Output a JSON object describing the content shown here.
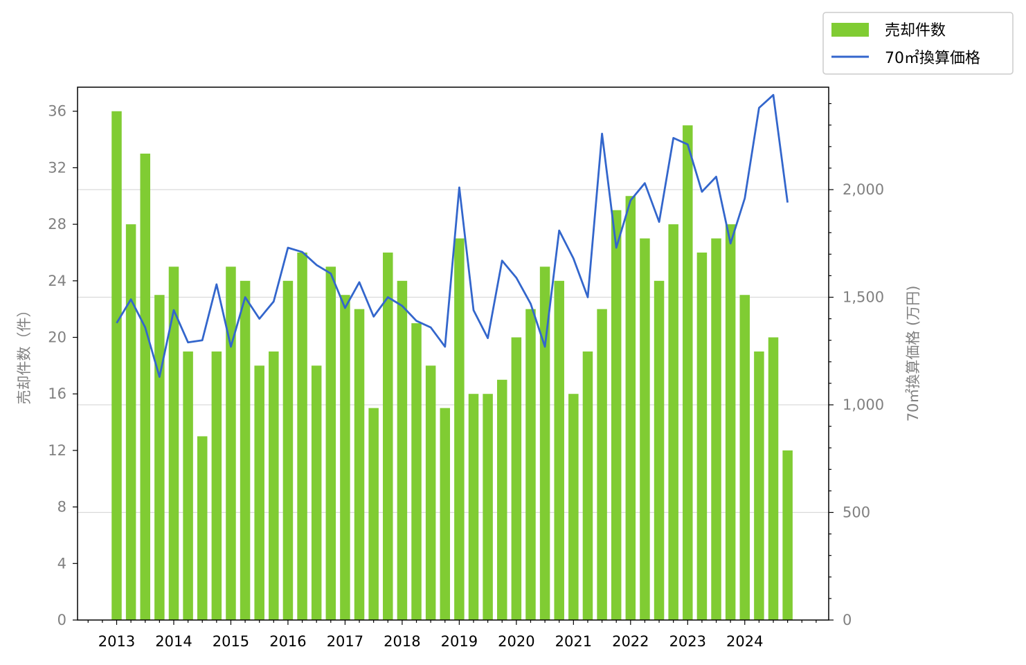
{
  "chart_data": {
    "type": "bar+line",
    "x_quarters": [
      "2013-Q1",
      "2013-Q2",
      "2013-Q3",
      "2013-Q4",
      "2014-Q1",
      "2014-Q2",
      "2014-Q3",
      "2014-Q4",
      "2015-Q1",
      "2015-Q2",
      "2015-Q3",
      "2015-Q4",
      "2016-Q1",
      "2016-Q2",
      "2016-Q3",
      "2016-Q4",
      "2017-Q1",
      "2017-Q2",
      "2017-Q3",
      "2017-Q4",
      "2018-Q1",
      "2018-Q2",
      "2018-Q3",
      "2018-Q4",
      "2019-Q1",
      "2019-Q2",
      "2019-Q3",
      "2019-Q4",
      "2020-Q1",
      "2020-Q2",
      "2020-Q3",
      "2020-Q4",
      "2021-Q1",
      "2021-Q2",
      "2021-Q3",
      "2021-Q4",
      "2022-Q1",
      "2022-Q2",
      "2022-Q3",
      "2022-Q4",
      "2023-Q1",
      "2023-Q2",
      "2023-Q3",
      "2023-Q4",
      "2024-Q1",
      "2024-Q2",
      "2024-Q3",
      "2024-Q4"
    ],
    "xticks": [
      "2013",
      "2014",
      "2015",
      "2016",
      "2017",
      "2018",
      "2019",
      "2020",
      "2021",
      "2022",
      "2023",
      "2024"
    ],
    "series": [
      {
        "name": "売却件数",
        "type": "bar",
        "axis": "left",
        "color": "#80cc33",
        "values": [
          36,
          28,
          33,
          23,
          25,
          19,
          13,
          19,
          25,
          24,
          18,
          19,
          24,
          26,
          18,
          25,
          23,
          22,
          15,
          26,
          24,
          21,
          18,
          15,
          27,
          16,
          16,
          17,
          20,
          22,
          25,
          24,
          16,
          19,
          22,
          29,
          30,
          27,
          24,
          28,
          35,
          26,
          27,
          28,
          23,
          19,
          20,
          12
        ]
      },
      {
        "name": "70㎡換算価格",
        "type": "line",
        "axis": "right",
        "color": "#3366cc",
        "values": [
          1380,
          1490,
          1360,
          1130,
          1440,
          1290,
          1300,
          1560,
          1270,
          1500,
          1400,
          1480,
          1730,
          1710,
          1650,
          1610,
          1450,
          1570,
          1410,
          1500,
          1460,
          1390,
          1360,
          1270,
          2010,
          1440,
          1310,
          1670,
          1590,
          1470,
          1270,
          1810,
          1680,
          1500,
          2260,
          1730,
          1950,
          2030,
          1850,
          2240,
          2210,
          1990,
          2060,
          1750,
          1960,
          2380,
          2440,
          1940
        ]
      }
    ],
    "ylabel_left": "売却件数（件）",
    "ylabel_right": "70㎡換算価格 (万円)",
    "yleft_ticks": [
      "0",
      "4",
      "8",
      "12",
      "16",
      "20",
      "24",
      "28",
      "32",
      "36"
    ],
    "yright_ticks": [
      "0",
      "500",
      "1,000",
      "1,500",
      "2,000"
    ],
    "ylim_left": [
      0,
      37.7
    ],
    "ylim_right": [
      0,
      2476
    ],
    "grid": "horizontal (right axis)",
    "legend_placement": "top-right",
    "colors": {
      "tick_text": "#808080",
      "year_text": "#000000",
      "grid": "#d9d9d9"
    }
  }
}
